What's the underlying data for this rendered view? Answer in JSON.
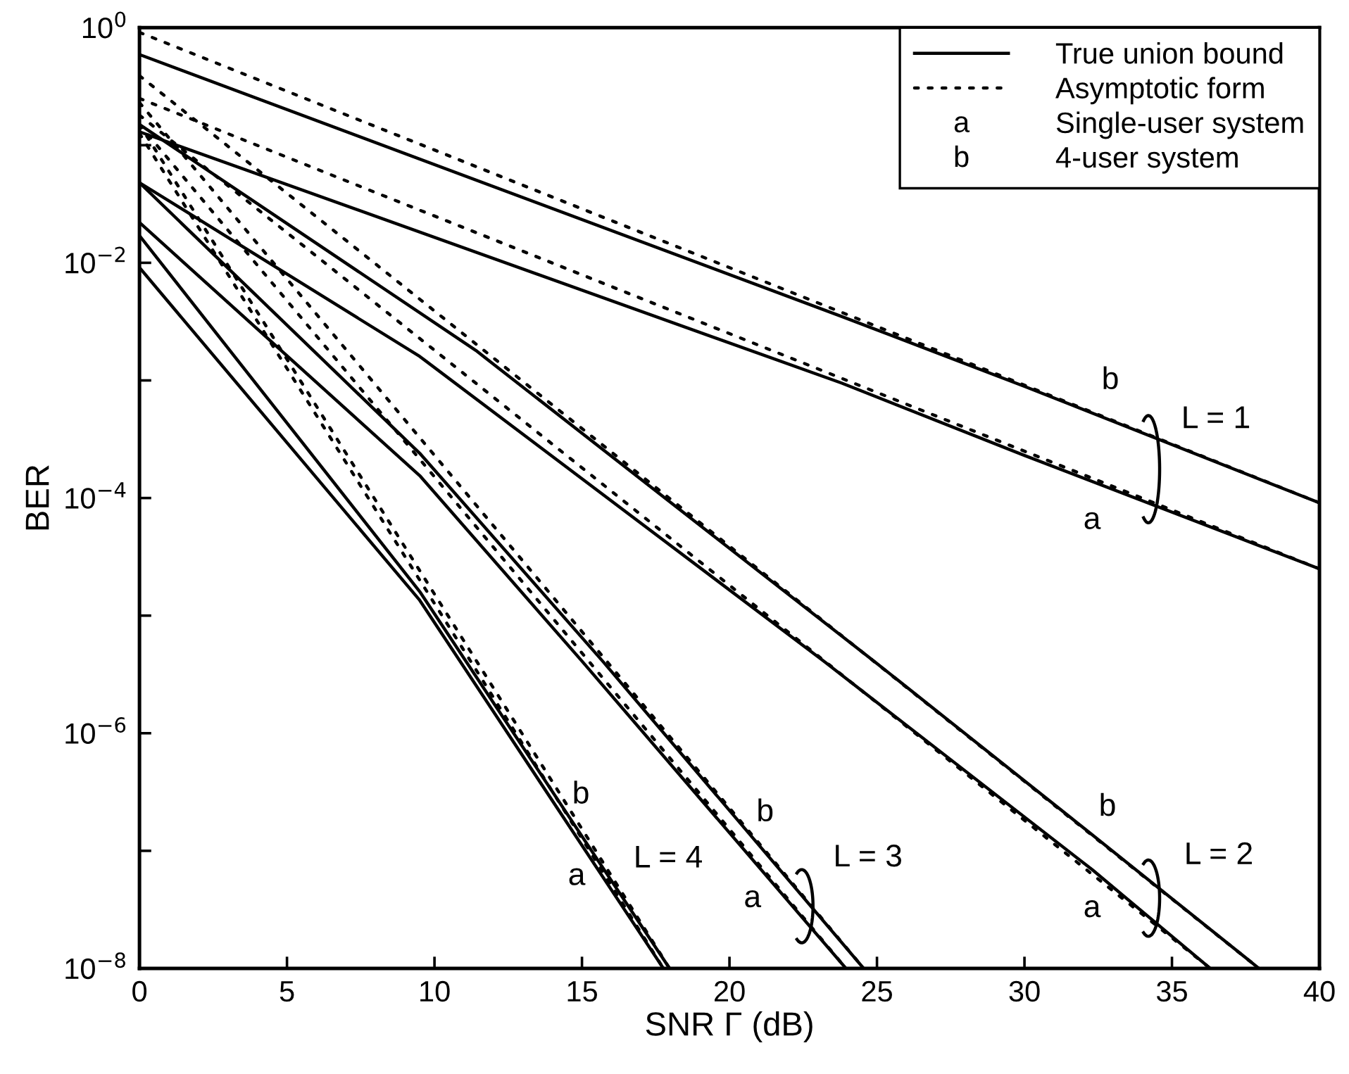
{
  "chart_data": {
    "type": "line",
    "xlabel": "SNR Γ (dB)",
    "ylabel": "BER",
    "log": "y",
    "xlim": [
      0,
      40
    ],
    "xticks": [
      0,
      5,
      10,
      15,
      20,
      25,
      30,
      35,
      40
    ],
    "ylim": [
      1e-08,
      1
    ],
    "yticks": [
      {
        "value": 1,
        "label": "10$^{0}$"
      },
      {
        "value": 0.1,
        "label": null
      },
      {
        "value": 0.01,
        "label": "10$^{−2}$"
      },
      {
        "value": 0.001,
        "label": null
      },
      {
        "value": 0.0001,
        "label": "10$^{−4}$"
      },
      {
        "value": 1e-05,
        "label": null
      },
      {
        "value": 1e-06,
        "label": "10$^{−6}$"
      },
      {
        "value": 1e-07,
        "label": null
      },
      {
        "value": 1e-08,
        "label": "10$^{−8}$"
      }
    ],
    "grid": false,
    "legend": "top right",
    "marker": "none",
    "series": [
      {
        "name": "True union bound",
        "color": "#000000",
        "line_style": "solid",
        "x": [
          0,
          23.8,
          30,
          40
        ],
        "values": [
          0.59,
          0.0035,
          0.00089,
          9.1e-05
        ]
      },
      {
        "color": "#000000",
        "line_style": "solid",
        "x": [
          0,
          23.8,
          30,
          40
        ],
        "values": [
          0.13,
          0.00095,
          0.00023,
          2.5e-05
        ]
      },
      {
        "color": "#000000",
        "line_style": "solid",
        "x": [
          0,
          11.4,
          24.9,
          32.1,
          37.95
        ],
        "values": [
          0.15,
          0.0018,
          4.1e-06,
          1.5e-07,
          1e-08
        ]
      },
      {
        "color": "#000000",
        "line_style": "solid",
        "x": [
          0,
          9.5,
          23.2,
          32.3,
          36.3
        ],
        "values": [
          0.048,
          0.0016,
          4.1e-06,
          6.9e-08,
          1e-08
        ]
      },
      {
        "color": "#000000",
        "line_style": "solid",
        "x": [
          0,
          9.5,
          15.7,
          24.55
        ],
        "values": [
          0.048,
          0.00024,
          4.1e-06,
          1e-08
        ]
      },
      {
        "color": "#000000",
        "line_style": "solid",
        "x": [
          0,
          9.5,
          15.0,
          23.95
        ],
        "values": [
          0.022,
          0.000155,
          4.1e-06,
          1e-08
        ]
      },
      {
        "color": "#000000",
        "line_style": "solid",
        "x": [
          0,
          9.5,
          17.97
        ],
        "values": [
          0.017,
          1.6e-05,
          1e-08
        ]
      },
      {
        "color": "#000000",
        "line_style": "solid",
        "x": [
          0,
          9.5,
          17.76
        ],
        "values": [
          0.0091,
          1.35e-05,
          1e-08
        ]
      },
      {
        "name": "Asymptotic form",
        "color": "#000000",
        "line_style": "dotted",
        "x": [
          0,
          40
        ],
        "values": [
          0.91,
          9.1e-05
        ]
      },
      {
        "color": "#000000",
        "line_style": "dotted",
        "x": [
          0,
          40
        ],
        "values": [
          0.25,
          2.5e-05
        ]
      },
      {
        "color": "#000000",
        "line_style": "dotted",
        "x": [
          0,
          37.95
        ],
        "values": [
          0.39,
          1e-08
        ]
      },
      {
        "color": "#000000",
        "line_style": "dotted",
        "x": [
          0,
          36.3
        ],
        "values": [
          0.18,
          1e-08
        ]
      },
      {
        "color": "#000000",
        "line_style": "dotted",
        "x": [
          0,
          24.55
        ],
        "values": [
          0.23,
          1e-08
        ]
      },
      {
        "color": "#000000",
        "line_style": "dotted",
        "x": [
          0,
          23.95
        ],
        "values": [
          0.15,
          1e-08
        ]
      },
      {
        "color": "#000000",
        "line_style": "dotted",
        "x": [
          0,
          17.97
        ],
        "values": [
          0.15,
          1e-08
        ]
      },
      {
        "color": "#000000",
        "line_style": "dotted",
        "x": [
          0,
          17.76
        ],
        "values": [
          0.126,
          1e-08
        ]
      }
    ],
    "annotations": [
      "a",
      "Single-user system",
      "b",
      "4-user system",
      "b",
      "a",
      "L = 1",
      "b",
      "a",
      "L = 2",
      "b",
      "a",
      "L = 3",
      "b",
      "a",
      "L = 4"
    ]
  }
}
